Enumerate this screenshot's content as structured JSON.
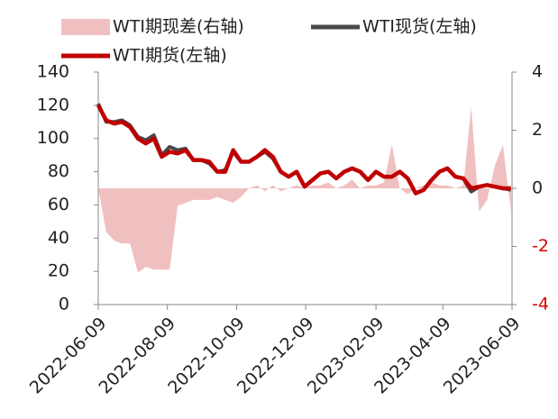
{
  "chart_data": {
    "type": "line",
    "x": [
      "2022-06-09",
      "2022-06-16",
      "2022-06-23",
      "2022-06-30",
      "2022-07-07",
      "2022-07-14",
      "2022-07-21",
      "2022-07-28",
      "2022-08-04",
      "2022-08-11",
      "2022-08-18",
      "2022-08-25",
      "2022-09-01",
      "2022-09-08",
      "2022-09-15",
      "2022-09-22",
      "2022-09-29",
      "2022-10-06",
      "2022-10-13",
      "2022-10-20",
      "2022-10-27",
      "2022-11-03",
      "2022-11-10",
      "2022-11-17",
      "2022-11-24",
      "2022-12-01",
      "2022-12-08",
      "2022-12-15",
      "2022-12-22",
      "2022-12-29",
      "2023-01-05",
      "2023-01-12",
      "2023-01-19",
      "2023-01-26",
      "2023-02-02",
      "2023-02-09",
      "2023-02-16",
      "2023-02-23",
      "2023-03-02",
      "2023-03-09",
      "2023-03-16",
      "2023-03-23",
      "2023-03-30",
      "2023-04-06",
      "2023-04-13",
      "2023-04-20",
      "2023-04-27",
      "2023-05-04",
      "2023-05-11",
      "2023-05-18",
      "2023-05-25",
      "2023-06-01",
      "2023-06-08"
    ],
    "xlim": [
      "2022-06-09",
      "2023-06-09"
    ],
    "xticks": [
      "2022-06-09",
      "2022-08-09",
      "2022-10-09",
      "2022-12-09",
      "2023-02-09",
      "2023-04-09",
      "2023-06-09"
    ],
    "ylim": [
      0,
      140
    ],
    "yticks": [
      0,
      20,
      40,
      60,
      80,
      100,
      120,
      140
    ],
    "y2lim": [
      -4,
      4
    ],
    "y2ticks": [
      -4,
      -2,
      0,
      2,
      4
    ],
    "negative_tick_color": "#e00000",
    "series": [
      {
        "name": "WTI期现差(右轴)",
        "type": "area",
        "axis": "y2",
        "color": "#f0c0c0",
        "values": [
          0,
          -1.5,
          -1.8,
          -1.9,
          -1.9,
          -2.9,
          -2.7,
          -2.8,
          -2.8,
          -2.8,
          -0.6,
          -0.5,
          -0.4,
          -0.4,
          -0.4,
          -0.3,
          -0.4,
          -0.5,
          -0.3,
          0,
          0.1,
          -0.1,
          0.1,
          -0.1,
          0,
          0.1,
          0,
          0.1,
          0.1,
          0.2,
          0,
          0.1,
          0.3,
          0,
          0.1,
          0.1,
          0.2,
          1.5,
          0,
          -0.2,
          0,
          0.1,
          0.2,
          0.1,
          0.1,
          0,
          0.1,
          2.8,
          -0.8,
          -0.4,
          0.8,
          1.5,
          -0.8
        ]
      },
      {
        "name": "WTI现货(左轴)",
        "type": "line",
        "color": "#4a4a4a",
        "values": [
          121,
          110,
          110,
          111,
          108,
          101,
          99,
          102,
          90,
          95,
          93,
          94,
          87,
          87,
          85,
          80,
          81,
          92,
          86,
          86,
          89,
          92,
          88,
          80,
          77,
          80,
          71,
          75,
          79,
          80,
          76,
          80,
          82,
          80,
          75,
          80,
          77,
          77,
          80,
          76,
          67,
          69,
          75,
          80,
          82,
          77,
          76,
          68,
          71,
          72,
          71,
          70,
          69
        ]
      },
      {
        "name": "WTI期货(左轴)",
        "type": "line",
        "color": "#c00000",
        "values": [
          120,
          111,
          109,
          110,
          107,
          100,
          97,
          100,
          89,
          92,
          91,
          93,
          87,
          87,
          86,
          80,
          80,
          93,
          86,
          86,
          89,
          93,
          89,
          80,
          77,
          80,
          71,
          75,
          79,
          80,
          76,
          80,
          82,
          80,
          75,
          80,
          77,
          77,
          80,
          76,
          67,
          69,
          75,
          80,
          82,
          77,
          76,
          70,
          71,
          72,
          71,
          70,
          70
        ]
      }
    ]
  }
}
